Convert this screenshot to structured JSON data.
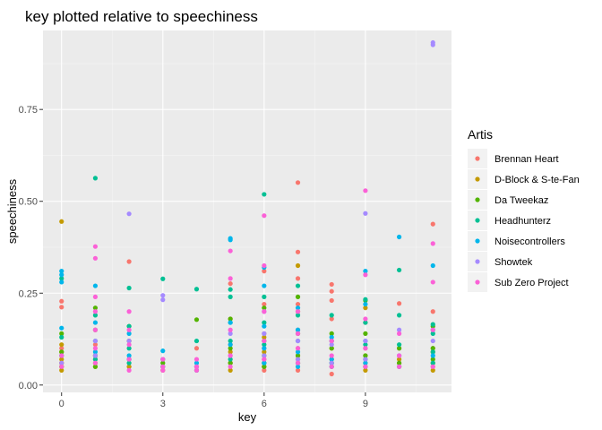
{
  "chart_data": {
    "type": "scatter",
    "title": "key plotted relative to speechiness",
    "xlabel": "key",
    "ylabel": "speechiness",
    "xlim": [
      -0.55,
      11.55
    ],
    "ylim": [
      -0.02,
      0.965
    ],
    "xticks": [
      0,
      3,
      6,
      9
    ],
    "xtick_labels": [
      "0",
      "3",
      "6",
      "9"
    ],
    "yticks": [
      0,
      0.25,
      0.5,
      0.75
    ],
    "ytick_labels": [
      "0.00",
      "0.25",
      "0.50",
      "0.75"
    ],
    "grid": true,
    "legend": {
      "title": "Artis",
      "position": "right"
    },
    "series": [
      {
        "name": "Brennan Heart",
        "color": "#F8766D",
        "x": [
          0,
          0,
          0,
          0,
          1,
          1,
          2,
          2,
          2,
          4,
          4,
          5,
          5,
          5,
          5,
          6,
          6,
          6,
          6,
          6,
          6,
          6,
          7,
          7,
          7,
          7,
          7,
          7,
          7,
          7,
          8,
          8,
          8,
          8,
          8,
          8,
          9,
          9,
          9,
          10,
          10,
          10,
          11,
          11,
          11,
          11
        ],
        "y": [
          0.228,
          0.212,
          0.1,
          0.06,
          0.11,
          0.07,
          0.336,
          0.12,
          0.05,
          0.1,
          0.05,
          0.276,
          0.18,
          0.11,
          0.06,
          0.31,
          0.22,
          0.14,
          0.1,
          0.07,
          0.05,
          0.04,
          0.551,
          0.362,
          0.29,
          0.22,
          0.15,
          0.1,
          0.07,
          0.04,
          0.274,
          0.255,
          0.23,
          0.18,
          0.12,
          0.03,
          0.17,
          0.1,
          0.05,
          0.222,
          0.1,
          0.06,
          0.438,
          0.2,
          0.1,
          0.05
        ]
      },
      {
        "name": "D-Block & S-te-Fan",
        "color": "#C49A00",
        "x": [
          0,
          0,
          0,
          0,
          0,
          0,
          0,
          1,
          1,
          1,
          2,
          2,
          3,
          3,
          4,
          5,
          5,
          5,
          6,
          6,
          6,
          6,
          7,
          7,
          7,
          7,
          8,
          8,
          8,
          9,
          9,
          9,
          9,
          10,
          10,
          11,
          11,
          11
        ],
        "y": [
          0.445,
          0.11,
          0.09,
          0.07,
          0.06,
          0.05,
          0.04,
          0.08,
          0.06,
          0.05,
          0.07,
          0.05,
          0.05,
          0.04,
          0.04,
          0.09,
          0.06,
          0.04,
          0.13,
          0.09,
          0.06,
          0.05,
          0.325,
          0.2,
          0.08,
          0.06,
          0.1,
          0.07,
          0.05,
          0.21,
          0.08,
          0.06,
          0.04,
          0.07,
          0.05,
          0.09,
          0.06,
          0.04
        ]
      },
      {
        "name": "Da Tweekaz",
        "color": "#53B400",
        "x": [
          0,
          0,
          0,
          1,
          1,
          1,
          1,
          2,
          2,
          2,
          3,
          4,
          4,
          5,
          5,
          5,
          6,
          6,
          6,
          6,
          7,
          7,
          7,
          8,
          8,
          8,
          9,
          9,
          9,
          9,
          10,
          10,
          11,
          11,
          11
        ],
        "y": [
          0.14,
          0.09,
          0.05,
          0.21,
          0.15,
          0.08,
          0.05,
          0.16,
          0.12,
          0.07,
          0.06,
          0.178,
          0.05,
          0.18,
          0.1,
          0.06,
          0.21,
          0.12,
          0.08,
          0.05,
          0.24,
          0.14,
          0.08,
          0.14,
          0.1,
          0.06,
          0.23,
          0.14,
          0.08,
          0.05,
          0.1,
          0.06,
          0.16,
          0.1,
          0.07
        ]
      },
      {
        "name": "Headhunterz",
        "color": "#00C094",
        "x": [
          0,
          0,
          0,
          1,
          1,
          1,
          1,
          2,
          2,
          2,
          2,
          3,
          3,
          4,
          4,
          5,
          5,
          5,
          5,
          5,
          6,
          6,
          6,
          6,
          6,
          7,
          7,
          7,
          7,
          8,
          8,
          8,
          9,
          9,
          9,
          9,
          10,
          10,
          10,
          11,
          11,
          11,
          11
        ],
        "y": [
          0.29,
          0.13,
          0.08,
          0.563,
          0.19,
          0.12,
          0.07,
          0.264,
          0.16,
          0.1,
          0.06,
          0.289,
          0.07,
          0.261,
          0.12,
          0.26,
          0.24,
          0.17,
          0.12,
          0.07,
          0.519,
          0.24,
          0.17,
          0.11,
          0.06,
          0.27,
          0.19,
          0.12,
          0.06,
          0.19,
          0.12,
          0.06,
          0.233,
          0.17,
          0.11,
          0.07,
          0.313,
          0.19,
          0.11,
          0.165,
          0.14,
          0.09,
          0.06
        ]
      },
      {
        "name": "Noisecontrollers",
        "color": "#00B6EB",
        "x": [
          0,
          0,
          0,
          0,
          1,
          1,
          1,
          2,
          2,
          3,
          3,
          4,
          4,
          5,
          5,
          5,
          5,
          6,
          6,
          6,
          6,
          6,
          7,
          7,
          7,
          7,
          8,
          8,
          8,
          9,
          9,
          9,
          9,
          10,
          10,
          10,
          11,
          11,
          11
        ],
        "y": [
          0.31,
          0.3,
          0.28,
          0.155,
          0.27,
          0.17,
          0.09,
          0.14,
          0.08,
          0.093,
          0.05,
          0.06,
          0.04,
          0.399,
          0.395,
          0.17,
          0.11,
          0.32,
          0.27,
          0.16,
          0.1,
          0.06,
          0.21,
          0.15,
          0.09,
          0.05,
          0.13,
          0.07,
          0.05,
          0.31,
          0.22,
          0.12,
          0.06,
          0.403,
          0.08,
          0.05,
          0.325,
          0.15,
          0.08
        ]
      },
      {
        "name": "Showtek",
        "color": "#A58AFF",
        "x": [
          0,
          1,
          1,
          2,
          2,
          2,
          3,
          3,
          3,
          4,
          5,
          5,
          6,
          6,
          6,
          7,
          7,
          8,
          8,
          9,
          9,
          9,
          10,
          10,
          11,
          11,
          11
        ],
        "y": [
          0.06,
          0.12,
          0.08,
          0.466,
          0.12,
          0.07,
          0.244,
          0.232,
          0.07,
          0.05,
          0.14,
          0.08,
          0.2,
          0.14,
          0.08,
          0.12,
          0.07,
          0.11,
          0.06,
          0.467,
          0.12,
          0.07,
          0.15,
          0.08,
          0.932,
          0.926,
          0.12
        ]
      },
      {
        "name": "Sub Zero Project",
        "color": "#FB61D7",
        "x": [
          0,
          0,
          1,
          1,
          1,
          1,
          1,
          1,
          1,
          2,
          2,
          2,
          2,
          2,
          3,
          3,
          3,
          4,
          4,
          4,
          5,
          5,
          5,
          5,
          5,
          6,
          6,
          6,
          6,
          6,
          7,
          7,
          7,
          7,
          8,
          8,
          8,
          9,
          9,
          9,
          9,
          9,
          10,
          10,
          10,
          11,
          11,
          11,
          11
        ],
        "y": [
          0.08,
          0.05,
          0.377,
          0.345,
          0.24,
          0.2,
          0.15,
          0.1,
          0.06,
          0.2,
          0.15,
          0.11,
          0.07,
          0.04,
          0.07,
          0.05,
          0.04,
          0.07,
          0.05,
          0.04,
          0.365,
          0.29,
          0.15,
          0.08,
          0.05,
          0.461,
          0.325,
          0.2,
          0.12,
          0.07,
          0.2,
          0.14,
          0.1,
          0.06,
          0.12,
          0.08,
          0.05,
          0.529,
          0.3,
          0.18,
          0.1,
          0.05,
          0.14,
          0.08,
          0.05,
          0.385,
          0.28,
          0.15,
          0.05
        ]
      }
    ]
  }
}
